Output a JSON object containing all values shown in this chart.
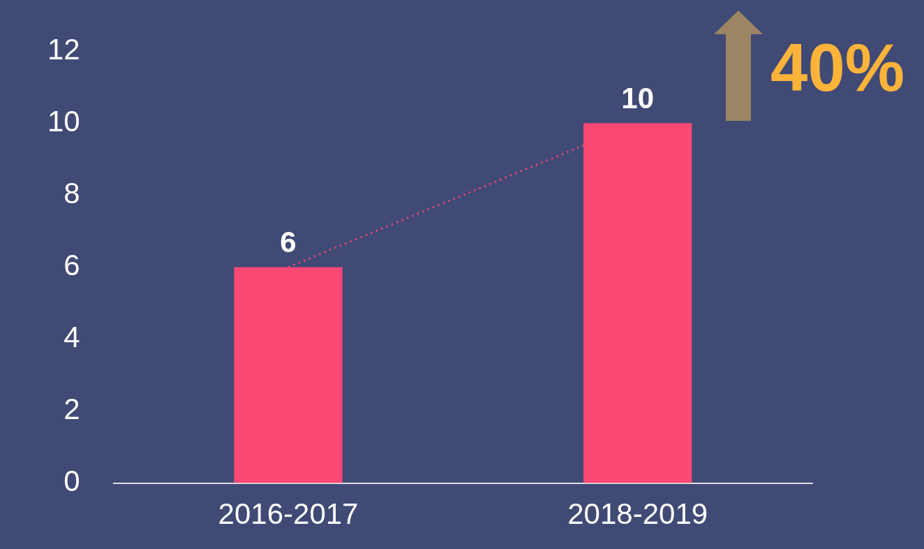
{
  "chart_data": {
    "type": "bar",
    "categories": [
      "2016-2017",
      "2018-2019"
    ],
    "series": [
      {
        "color": "#fb4874",
        "values": [
          6,
          10
        ],
        "value_labels": [
          "6",
          "10"
        ]
      },
      {
        "type": "line",
        "color": "#fb4874",
        "values": [
          6,
          10
        ],
        "line_style": "dotted",
        "marker": "none"
      }
    ],
    "ylim": [
      0,
      12
    ],
    "yticks": [
      0,
      2,
      4,
      6,
      8,
      10,
      12
    ],
    "grid": false,
    "legend": false,
    "annotations": [
      "40%"
    ]
  }
}
